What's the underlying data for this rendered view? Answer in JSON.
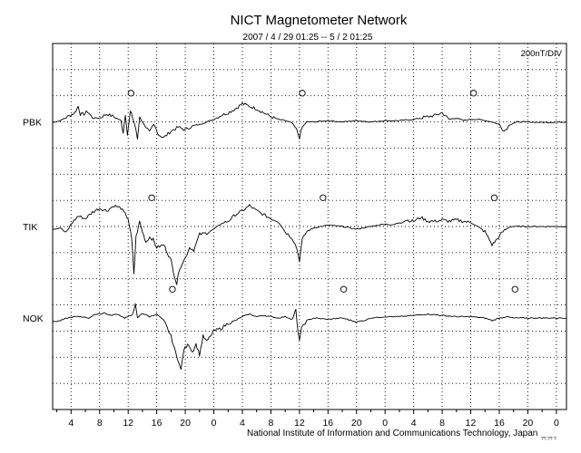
{
  "chart_data": {
    "type": "line",
    "title": "NICT Magnetometer Network",
    "subtitle": "2007 / 4 / 29   01:25 --  5 / 2   01:25",
    "scale_label": "200nT/DIV",
    "x_tick_labels": [
      "4",
      "8",
      "12",
      "16",
      "20",
      "0",
      "4",
      "8",
      "12",
      "16",
      "20",
      "0",
      "4",
      "8",
      "12",
      "16",
      "20",
      "0"
    ],
    "x_unit": "hour",
    "x_range_hours": [
      1.4167,
      73.4167
    ],
    "grid": true,
    "y_divisions": 14,
    "nT_per_division": 200,
    "series": [
      {
        "name": "PBK",
        "baseline_division": 3,
        "marker_hours": [
          12.4,
          36.4,
          60.4
        ],
        "points": [
          [
            1.42,
            -0.02
          ],
          [
            2.5,
            0.05
          ],
          [
            3.5,
            0.2
          ],
          [
            4.5,
            0.35
          ],
          [
            5.0,
            0.6
          ],
          [
            5.3,
            0.3
          ],
          [
            5.8,
            0.3
          ],
          [
            6.3,
            0.4
          ],
          [
            7.0,
            0.15
          ],
          [
            8.0,
            0.15
          ],
          [
            9.0,
            0.3
          ],
          [
            10.0,
            0.2
          ],
          [
            11.0,
            0.05
          ],
          [
            11.3,
            -0.4
          ],
          [
            11.6,
            0.3
          ],
          [
            11.9,
            -0.5
          ],
          [
            12.3,
            0.4
          ],
          [
            12.8,
            0.0
          ],
          [
            13.1,
            -0.3
          ],
          [
            13.3,
            -0.7
          ],
          [
            13.6,
            0.2
          ],
          [
            14.0,
            0.0
          ],
          [
            14.5,
            -0.2
          ],
          [
            15.0,
            -0.4
          ],
          [
            15.6,
            -0.1
          ],
          [
            16.3,
            -0.5
          ],
          [
            17.0,
            -0.6
          ],
          [
            18.0,
            -0.35
          ],
          [
            19.0,
            -0.2
          ],
          [
            20.0,
            -0.3
          ],
          [
            21.0,
            -0.15
          ],
          [
            22.0,
            -0.1
          ],
          [
            23.0,
            0.0
          ],
          [
            24.0,
            0.1
          ],
          [
            25.0,
            0.25
          ],
          [
            26.0,
            0.35
          ],
          [
            27.0,
            0.5
          ],
          [
            28.0,
            0.7
          ],
          [
            29.0,
            0.6
          ],
          [
            30.0,
            0.5
          ],
          [
            31.0,
            0.35
          ],
          [
            32.0,
            0.2
          ],
          [
            33.0,
            0.1
          ],
          [
            34.0,
            0.05
          ],
          [
            35.0,
            -0.05
          ],
          [
            35.6,
            -0.3
          ],
          [
            36.0,
            -0.6
          ],
          [
            36.4,
            -0.2
          ],
          [
            37.0,
            0.0
          ],
          [
            38.0,
            0.0
          ],
          [
            40.0,
            0.05
          ],
          [
            42.0,
            0.0
          ],
          [
            44.0,
            0.05
          ],
          [
            46.0,
            0.0
          ],
          [
            48.0,
            0.05
          ],
          [
            50.0,
            0.05
          ],
          [
            52.0,
            0.1
          ],
          [
            54.0,
            0.2
          ],
          [
            55.0,
            0.25
          ],
          [
            56.0,
            0.35
          ],
          [
            57.0,
            0.1
          ],
          [
            58.0,
            0.15
          ],
          [
            59.0,
            0.05
          ],
          [
            60.0,
            0.1
          ],
          [
            61.0,
            0.1
          ],
          [
            62.0,
            0.05
          ],
          [
            63.0,
            0.0
          ],
          [
            64.0,
            -0.1
          ],
          [
            64.7,
            -0.35
          ],
          [
            65.5,
            -0.1
          ],
          [
            66.5,
            0.0
          ],
          [
            68.0,
            0.0
          ],
          [
            70.0,
            -0.02
          ],
          [
            73.4,
            0.0
          ]
        ]
      },
      {
        "name": "TIK",
        "baseline_division": 7,
        "marker_hours": [
          15.3,
          39.3,
          63.3
        ],
        "points": [
          [
            1.42,
            -0.1
          ],
          [
            2.5,
            -0.05
          ],
          [
            3.3,
            -0.25
          ],
          [
            4.0,
            0.1
          ],
          [
            5.0,
            0.4
          ],
          [
            6.0,
            0.3
          ],
          [
            7.0,
            0.55
          ],
          [
            8.0,
            0.7
          ],
          [
            9.0,
            0.6
          ],
          [
            10.0,
            0.8
          ],
          [
            11.0,
            0.7
          ],
          [
            12.0,
            0.3
          ],
          [
            12.5,
            -0.5
          ],
          [
            12.8,
            -1.8
          ],
          [
            13.1,
            -0.4
          ],
          [
            13.6,
            0.2
          ],
          [
            14.0,
            -0.2
          ],
          [
            14.5,
            -0.6
          ],
          [
            15.0,
            -0.4
          ],
          [
            15.5,
            -0.5
          ],
          [
            16.0,
            -0.8
          ],
          [
            17.0,
            -0.7
          ],
          [
            17.5,
            -1.0
          ],
          [
            18.0,
            -1.3
          ],
          [
            18.5,
            -1.9
          ],
          [
            18.8,
            -2.2
          ],
          [
            19.2,
            -1.6
          ],
          [
            20.0,
            -1.2
          ],
          [
            20.6,
            -0.8
          ],
          [
            21.2,
            -0.9
          ],
          [
            22.0,
            -0.3
          ],
          [
            23.0,
            -0.25
          ],
          [
            24.0,
            -0.1
          ],
          [
            25.0,
            0.1
          ],
          [
            26.0,
            0.2
          ],
          [
            27.0,
            0.45
          ],
          [
            28.0,
            0.6
          ],
          [
            29.0,
            0.8
          ],
          [
            30.0,
            0.6
          ],
          [
            31.0,
            0.45
          ],
          [
            32.0,
            0.3
          ],
          [
            33.0,
            0.2
          ],
          [
            34.0,
            -0.2
          ],
          [
            35.0,
            -0.45
          ],
          [
            35.6,
            -0.8
          ],
          [
            36.0,
            -1.3
          ],
          [
            36.4,
            -0.5
          ],
          [
            37.0,
            -0.2
          ],
          [
            38.0,
            -0.05
          ],
          [
            40.0,
            0.05
          ],
          [
            42.0,
            0.0
          ],
          [
            43.0,
            -0.05
          ],
          [
            44.0,
            -0.1
          ],
          [
            45.0,
            -0.05
          ],
          [
            46.0,
            0.0
          ],
          [
            47.0,
            0.05
          ],
          [
            48.0,
            0.1
          ],
          [
            49.0,
            0.05
          ],
          [
            50.0,
            0.15
          ],
          [
            51.0,
            0.25
          ],
          [
            52.0,
            0.2
          ],
          [
            53.0,
            0.35
          ],
          [
            54.0,
            0.2
          ],
          [
            55.0,
            0.2
          ],
          [
            56.0,
            0.25
          ],
          [
            57.0,
            0.2
          ],
          [
            58.0,
            0.25
          ],
          [
            59.0,
            0.2
          ],
          [
            60.0,
            0.15
          ],
          [
            61.0,
            0.0
          ],
          [
            62.0,
            -0.2
          ],
          [
            63.0,
            -0.7
          ],
          [
            63.5,
            -0.55
          ],
          [
            64.5,
            -0.2
          ],
          [
            65.5,
            0.0
          ],
          [
            67.0,
            0.0
          ],
          [
            70.0,
            0.0
          ],
          [
            73.4,
            0.0
          ]
        ]
      },
      {
        "name": "NOK",
        "baseline_division": 10.5,
        "marker_hours": [
          18.2,
          42.2,
          66.2
        ],
        "points": [
          [
            1.42,
            -0.15
          ],
          [
            2.5,
            -0.1
          ],
          [
            3.5,
            0.0
          ],
          [
            4.5,
            0.05
          ],
          [
            5.5,
            0.05
          ],
          [
            6.5,
            0.0
          ],
          [
            7.5,
            0.15
          ],
          [
            8.5,
            0.2
          ],
          [
            9.5,
            0.1
          ],
          [
            10.5,
            0.15
          ],
          [
            11.5,
            0.0
          ],
          [
            12.5,
            0.1
          ],
          [
            13.0,
            0.5
          ],
          [
            13.3,
            0.0
          ],
          [
            14.0,
            0.2
          ],
          [
            15.0,
            0.05
          ],
          [
            16.0,
            0.15
          ],
          [
            17.0,
            -0.1
          ],
          [
            17.5,
            -0.4
          ],
          [
            18.0,
            -0.7
          ],
          [
            18.5,
            -1.2
          ],
          [
            19.0,
            -1.6
          ],
          [
            19.4,
            -2.0
          ],
          [
            19.8,
            -1.2
          ],
          [
            20.5,
            -1.0
          ],
          [
            21.0,
            -1.3
          ],
          [
            21.5,
            -1.0
          ],
          [
            22.0,
            -1.4
          ],
          [
            22.5,
            -0.7
          ],
          [
            23.0,
            -0.9
          ],
          [
            24.0,
            -0.5
          ],
          [
            25.0,
            -0.4
          ],
          [
            26.0,
            -0.2
          ],
          [
            27.0,
            -0.1
          ],
          [
            28.0,
            0.05
          ],
          [
            29.0,
            0.15
          ],
          [
            30.0,
            0.05
          ],
          [
            31.0,
            0.1
          ],
          [
            32.0,
            0.05
          ],
          [
            33.0,
            0.0
          ],
          [
            34.0,
            0.05
          ],
          [
            35.0,
            -0.05
          ],
          [
            35.5,
            0.3
          ],
          [
            35.8,
            -0.6
          ],
          [
            36.0,
            -0.8
          ],
          [
            36.3,
            -0.4
          ],
          [
            37.0,
            -0.1
          ],
          [
            38.0,
            0.0
          ],
          [
            40.0,
            -0.05
          ],
          [
            42.0,
            0.0
          ],
          [
            44.0,
            -0.15
          ],
          [
            45.0,
            -0.1
          ],
          [
            46.0,
            0.0
          ],
          [
            48.0,
            0.05
          ],
          [
            50.0,
            0.05
          ],
          [
            52.0,
            0.1
          ],
          [
            54.0,
            0.15
          ],
          [
            56.0,
            0.1
          ],
          [
            58.0,
            0.05
          ],
          [
            60.0,
            0.05
          ],
          [
            62.0,
            0.0
          ],
          [
            63.0,
            -0.1
          ],
          [
            64.0,
            0.0
          ],
          [
            65.0,
            0.05
          ],
          [
            66.0,
            0.0
          ],
          [
            68.0,
            0.0
          ],
          [
            70.0,
            0.0
          ],
          [
            73.4,
            0.0
          ]
        ]
      }
    ]
  },
  "footer": "National Institute of Information and Communications Technology, Japan",
  "corner_mark": "??.?? ?"
}
